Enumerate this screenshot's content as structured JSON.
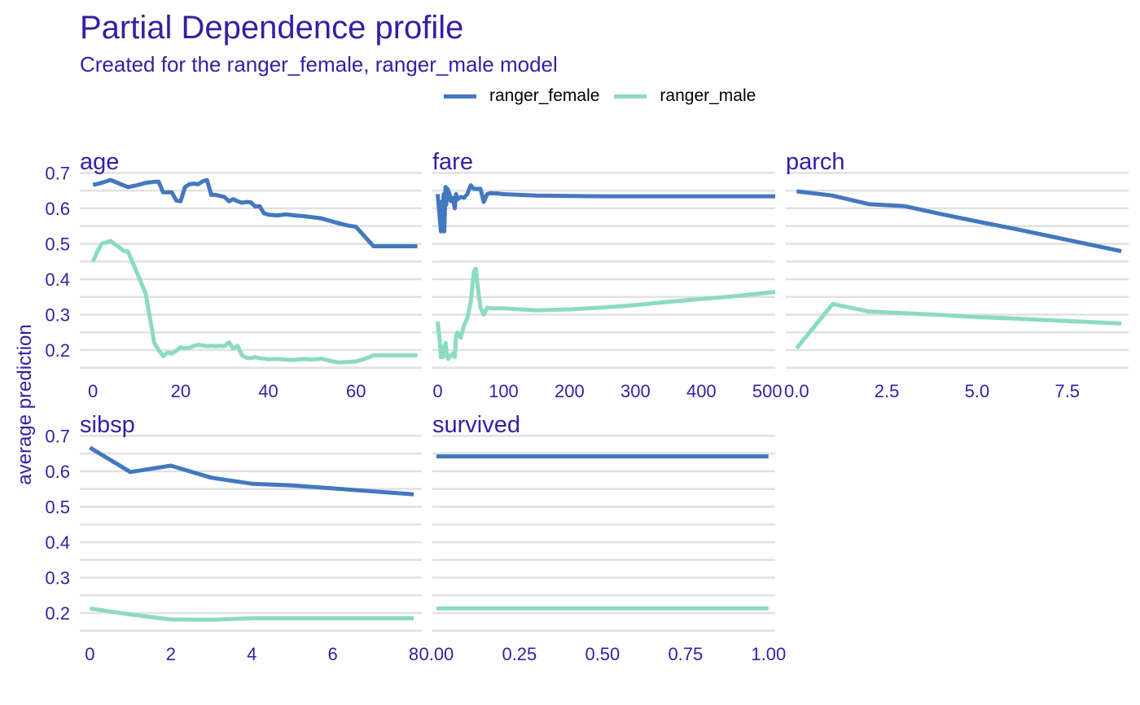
{
  "title": "Partial Dependence profile",
  "subtitle": "Created for the ranger_female, ranger_male model",
  "chart_data": {
    "type": "line",
    "ylabel": "average prediction",
    "ylim": [
      0.15,
      0.7
    ],
    "yticks": [
      0.2,
      0.3,
      0.4,
      0.5,
      0.6,
      0.7
    ],
    "grid": true,
    "legend_position": "top",
    "colors": {
      "ranger_female": "#4378bf",
      "ranger_male": "#8bdcbe"
    },
    "legend": [
      "ranger_female",
      "ranger_male"
    ],
    "panels": [
      {
        "name": "age",
        "xlim": [
          -3,
          75
        ],
        "xticks": [
          0,
          20,
          40,
          60
        ],
        "xtick_labels": [
          "0",
          "20",
          "40",
          "60"
        ],
        "series": [
          {
            "name": "ranger_female",
            "x": [
              0,
              2,
              4,
              6,
              8,
              10,
              12,
              14,
              15,
              16,
              18,
              19,
              20,
              21,
              22,
              23,
              24,
              25,
              26,
              27,
              28,
              29,
              30,
              31,
              32,
              33,
              34,
              35,
              36,
              37,
              38,
              39,
              40,
              42,
              44,
              46,
              48,
              50,
              52,
              54,
              56,
              58,
              60,
              62,
              64,
              66,
              68,
              70,
              72,
              74
            ],
            "y": [
              0.666,
              0.672,
              0.68,
              0.67,
              0.66,
              0.665,
              0.672,
              0.675,
              0.675,
              0.645,
              0.645,
              0.622,
              0.62,
              0.66,
              0.668,
              0.67,
              0.668,
              0.676,
              0.68,
              0.638,
              0.638,
              0.635,
              0.632,
              0.62,
              0.626,
              0.62,
              0.616,
              0.618,
              0.617,
              0.605,
              0.606,
              0.586,
              0.582,
              0.58,
              0.583,
              0.58,
              0.578,
              0.575,
              0.572,
              0.565,
              0.558,
              0.552,
              0.548,
              0.52,
              0.493,
              0.493,
              0.493,
              0.493,
              0.493,
              0.493
            ]
          },
          {
            "name": "ranger_male",
            "x": [
              0,
              1,
              2,
              4,
              6,
              7,
              8,
              10,
              12,
              13,
              14,
              15,
              16,
              17,
              18,
              19,
              20,
              21,
              22,
              23,
              24,
              25,
              26,
              27,
              28,
              29,
              30,
              31,
              32,
              33,
              34,
              35,
              36,
              37,
              38,
              39,
              40,
              42,
              44,
              46,
              48,
              50,
              52,
              54,
              56,
              58,
              60,
              62,
              64,
              66,
              68,
              70,
              72,
              74
            ],
            "y": [
              0.45,
              0.478,
              0.5,
              0.508,
              0.49,
              0.48,
              0.478,
              0.42,
              0.36,
              0.29,
              0.22,
              0.2,
              0.183,
              0.193,
              0.19,
              0.198,
              0.208,
              0.205,
              0.206,
              0.212,
              0.215,
              0.213,
              0.211,
              0.212,
              0.211,
              0.212,
              0.211,
              0.222,
              0.205,
              0.212,
              0.185,
              0.178,
              0.177,
              0.18,
              0.177,
              0.176,
              0.174,
              0.175,
              0.173,
              0.172,
              0.175,
              0.173,
              0.176,
              0.17,
              0.165,
              0.166,
              0.168,
              0.175,
              0.185,
              0.185,
              0.185,
              0.185,
              0.185,
              0.185
            ]
          }
        ]
      },
      {
        "name": "fare",
        "xlim": [
          -8,
          512
        ],
        "xticks": [
          0,
          100,
          200,
          300,
          400,
          500
        ],
        "xtick_labels": [
          "0",
          "100",
          "200",
          "300",
          "400",
          "500"
        ],
        "series": [
          {
            "name": "ranger_female",
            "x": [
              0,
              5,
              7,
              8,
              9,
              10,
              12,
              13,
              15,
              18,
              20,
              23,
              26,
              28,
              30,
              35,
              40,
              45,
              50,
              55,
              60,
              65,
              70,
              75,
              80,
              90,
              100,
              150,
              200,
              250,
              300,
              350,
              400,
              450,
              512
            ],
            "y": [
              0.64,
              0.535,
              0.62,
              0.58,
              0.64,
              0.535,
              0.66,
              0.61,
              0.655,
              0.64,
              0.62,
              0.63,
              0.6,
              0.64,
              0.625,
              0.632,
              0.63,
              0.64,
              0.665,
              0.655,
              0.655,
              0.655,
              0.618,
              0.64,
              0.643,
              0.642,
              0.64,
              0.636,
              0.635,
              0.634,
              0.634,
              0.634,
              0.634,
              0.634,
              0.634
            ]
          },
          {
            "name": "ranger_male",
            "x": [
              0,
              3,
              5,
              7,
              8,
              10,
              12,
              14,
              16,
              18,
              20,
              23,
              26,
              28,
              30,
              35,
              40,
              45,
              50,
              55,
              58,
              62,
              65,
              70,
              75,
              80,
              90,
              100,
              150,
              200,
              250,
              300,
              350,
              400,
              450,
              512
            ],
            "y": [
              0.28,
              0.23,
              0.18,
              0.21,
              0.18,
              0.2,
              0.22,
              0.19,
              0.175,
              0.18,
              0.185,
              0.19,
              0.18,
              0.24,
              0.25,
              0.235,
              0.27,
              0.29,
              0.335,
              0.42,
              0.43,
              0.36,
              0.32,
              0.3,
              0.32,
              0.318,
              0.318,
              0.318,
              0.312,
              0.315,
              0.32,
              0.327,
              0.336,
              0.344,
              0.352,
              0.364
            ]
          }
        ]
      },
      {
        "name": "parch",
        "xlim": [
          -0.3,
          9.2
        ],
        "xticks": [
          0,
          2.5,
          5,
          7.5
        ],
        "xtick_labels": [
          "0.0",
          "2.5",
          "5.0",
          "7.5"
        ],
        "series": [
          {
            "name": "ranger_female",
            "x": [
              0,
              1,
              2,
              3,
              4,
              5,
              6,
              9
            ],
            "y": [
              0.648,
              0.636,
              0.612,
              0.606,
              0.584,
              0.563,
              0.543,
              0.479
            ]
          },
          {
            "name": "ranger_male",
            "x": [
              0,
              1,
              2,
              3,
              4,
              5,
              6,
              9
            ],
            "y": [
              0.205,
              0.33,
              0.309,
              0.304,
              0.299,
              0.293,
              0.289,
              0.275
            ]
          }
        ]
      },
      {
        "name": "sibsp",
        "xlim": [
          -0.25,
          8.2
        ],
        "xticks": [
          0,
          2,
          4,
          6,
          8
        ],
        "xtick_labels": [
          "0",
          "2",
          "4",
          "6",
          "8"
        ],
        "series": [
          {
            "name": "ranger_female",
            "x": [
              0,
              1,
              2,
              3,
              4,
              5,
              8
            ],
            "y": [
              0.667,
              0.598,
              0.616,
              0.582,
              0.565,
              0.56,
              0.535
            ]
          },
          {
            "name": "ranger_male",
            "x": [
              0,
              1,
              2,
              3,
              4,
              5,
              8
            ],
            "y": [
              0.213,
              0.196,
              0.182,
              0.181,
              0.185,
              0.185,
              0.185
            ]
          }
        ]
      },
      {
        "name": "survived",
        "xlim": [
          -0.012,
          1.02
        ],
        "xticks": [
          0,
          0.25,
          0.5,
          0.75,
          1
        ],
        "xtick_labels": [
          "0.00",
          "0.25",
          "0.50",
          "0.75",
          "1.00"
        ],
        "series": [
          {
            "name": "ranger_female",
            "x": [
              0,
              1
            ],
            "y": [
              0.642,
              0.642
            ]
          },
          {
            "name": "ranger_male",
            "x": [
              0,
              1
            ],
            "y": [
              0.213,
              0.213
            ]
          }
        ]
      }
    ]
  }
}
